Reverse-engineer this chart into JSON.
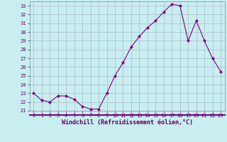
{
  "x": [
    0,
    1,
    2,
    3,
    4,
    5,
    6,
    7,
    8,
    9,
    10,
    11,
    12,
    13,
    14,
    15,
    16,
    17,
    18,
    19,
    20,
    21,
    22,
    23
  ],
  "y": [
    23.0,
    22.2,
    22.0,
    22.7,
    22.7,
    22.3,
    21.5,
    21.2,
    21.2,
    23.0,
    25.0,
    26.5,
    28.3,
    29.5,
    30.5,
    31.3,
    32.3,
    33.2,
    33.0,
    29.0,
    31.3,
    29.0,
    27.0,
    25.5
  ],
  "line_color": "#800080",
  "marker": "D",
  "marker_size": 2,
  "bg_color": "#c8eef0",
  "grid_color": "#aabbcc",
  "xlabel": "Windchill (Refroidissement éolien,°C)",
  "ylim": [
    21,
    33.5
  ],
  "xlim": [
    -0.5,
    23.5
  ],
  "yticks": [
    21,
    22,
    23,
    24,
    25,
    26,
    27,
    28,
    29,
    30,
    31,
    32,
    33
  ],
  "xticks": [
    0,
    1,
    2,
    3,
    4,
    5,
    6,
    7,
    8,
    9,
    10,
    11,
    12,
    13,
    14,
    15,
    16,
    17,
    18,
    19,
    20,
    21,
    22,
    23
  ],
  "tick_fontsize": 5,
  "xlabel_fontsize": 6
}
